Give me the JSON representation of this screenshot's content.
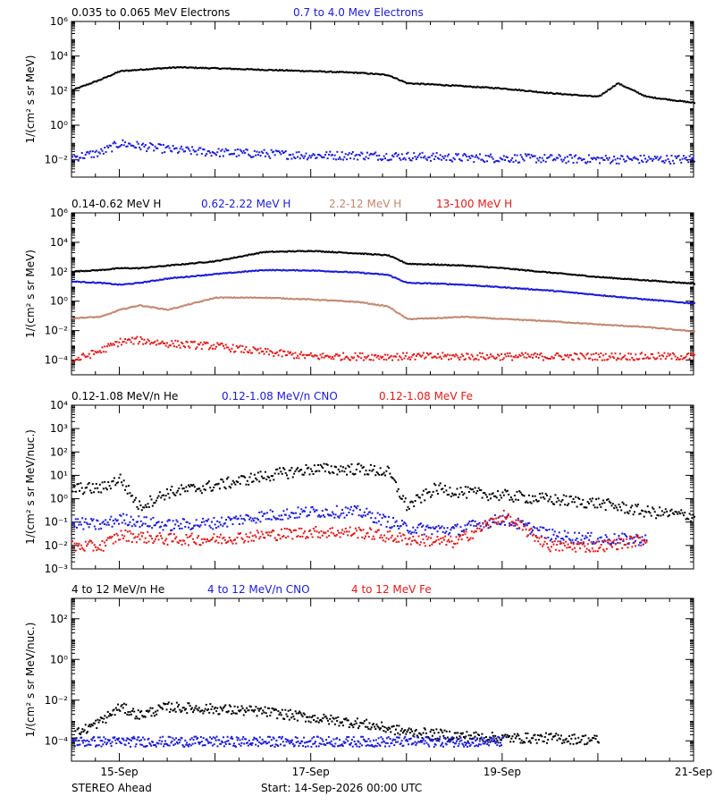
{
  "footer": {
    "left": "STEREO Ahead",
    "center": "Start: 14-Sep-2026 00:00 UTC"
  },
  "x_ticks": [
    "15-Sep",
    "17-Sep",
    "19-Sep",
    "21-Sep"
  ],
  "colors": {
    "black": "#000000",
    "blue": "#1a1ad8",
    "tan": "#c08870",
    "red": "#e01a1a"
  },
  "chart_data": [
    {
      "type": "scatter",
      "ylabel": "1/(cm² s sr MeV)",
      "ylabel_plain": "1/(cm^2 s sr MeV)",
      "log_y": true,
      "ylim": [
        0.001,
        1000000
      ],
      "y_ticks": [
        "10⁻²",
        "10⁰",
        "10²",
        "10⁴",
        "10⁶"
      ],
      "legend": [
        "0.035 to 0.065 MeV Electrons",
        "0.7 to 4.0 Mev Electrons"
      ],
      "series": [
        {
          "name": "0.035 to 0.065 MeV Electrons",
          "color": "black",
          "x": [
            14.5,
            14.8,
            15.0,
            15.3,
            15.6,
            16.0,
            16.5,
            17.0,
            17.5,
            17.8,
            18.0,
            18.3,
            18.6,
            19.0,
            19.5,
            20.0,
            20.2,
            20.5,
            21.0
          ],
          "y": [
            120,
            500,
            1500,
            2000,
            2500,
            2200,
            1800,
            1500,
            1200,
            900,
            300,
            250,
            200,
            150,
            80,
            50,
            300,
            50,
            22
          ]
        },
        {
          "name": "0.7 to 4.0 Mev Electrons",
          "color": "blue",
          "x": [
            14.5,
            14.8,
            15.0,
            15.3,
            15.6,
            16.0,
            16.5,
            17.0,
            17.5,
            18.0,
            18.5,
            19.0,
            19.5,
            20.0,
            20.5,
            21.0
          ],
          "y": [
            0.015,
            0.03,
            0.1,
            0.06,
            0.04,
            0.03,
            0.025,
            0.02,
            0.02,
            0.018,
            0.015,
            0.014,
            0.013,
            0.012,
            0.012,
            0.012
          ]
        }
      ]
    },
    {
      "type": "scatter",
      "ylabel": "1/(cm² s sr MeV)",
      "ylabel_plain": "1/(cm^2 s sr MeV)",
      "log_y": true,
      "ylim": [
        1e-05,
        1000000
      ],
      "y_ticks": [
        "10⁻⁴",
        "10⁻²",
        "10⁰",
        "10²",
        "10⁴",
        "10⁶"
      ],
      "legend": [
        "0.14-0.62 MeV H",
        "0.62-2.22 MeV H",
        "2.2-12 MeV H",
        "13-100 MeV H"
      ],
      "series": [
        {
          "name": "0.14-0.62 MeV H",
          "color": "black",
          "x": [
            14.5,
            14.8,
            15.0,
            15.2,
            15.5,
            16.0,
            16.5,
            17.0,
            17.5,
            17.8,
            18.0,
            18.3,
            18.6,
            19.0,
            19.5,
            20.0,
            20.5,
            21.0
          ],
          "y": [
            120,
            150,
            200,
            200,
            300,
            600,
            2500,
            3000,
            2000,
            1500,
            400,
            350,
            300,
            200,
            100,
            50,
            30,
            18
          ]
        },
        {
          "name": "0.62-2.22 MeV H",
          "color": "blue",
          "x": [
            14.5,
            14.8,
            15.0,
            15.2,
            15.5,
            16.0,
            16.5,
            17.0,
            17.5,
            17.8,
            18.0,
            18.3,
            18.6,
            19.0,
            19.5,
            20.0,
            20.5,
            21.0
          ],
          "y": [
            25,
            20,
            15,
            20,
            40,
            80,
            150,
            140,
            100,
            70,
            20,
            18,
            15,
            10,
            6,
            3,
            1.5,
            0.8
          ]
        },
        {
          "name": "2.2-12 MeV H",
          "color": "tan",
          "x": [
            14.5,
            14.8,
            15.0,
            15.2,
            15.5,
            16.0,
            16.5,
            17.0,
            17.5,
            17.8,
            18.0,
            18.3,
            18.6,
            19.0,
            19.5,
            20.0,
            20.5,
            21.0
          ],
          "y": [
            0.08,
            0.1,
            0.3,
            0.6,
            0.3,
            2,
            2,
            1.5,
            1,
            0.5,
            0.07,
            0.08,
            0.1,
            0.07,
            0.05,
            0.03,
            0.02,
            0.01
          ]
        },
        {
          "name": "13-100 MeV H",
          "color": "red",
          "x": [
            14.5,
            14.8,
            15.0,
            15.2,
            15.5,
            16.0,
            16.5,
            17.0,
            17.5,
            18.0,
            18.5,
            19.0,
            19.5,
            20.0,
            20.5,
            21.0
          ],
          "y": [
            0.0001,
            0.0005,
            0.002,
            0.0025,
            0.0015,
            0.001,
            0.0004,
            0.0002,
            0.0002,
            0.0002,
            0.0002,
            0.0002,
            0.0002,
            0.0002,
            0.0002,
            0.0002
          ]
        }
      ]
    },
    {
      "type": "scatter",
      "ylabel": "1/(cm² s sr MeV/nuc.)",
      "ylabel_plain": "1/(cm^2 s sr MeV/nuc.)",
      "log_y": true,
      "ylim": [
        0.001,
        10000
      ],
      "y_ticks": [
        "10⁻³",
        "10⁻²",
        "10⁻¹",
        "10⁰",
        "10¹",
        "10²",
        "10³",
        "10⁴"
      ],
      "legend": [
        "0.12-1.08 MeV/n He",
        "0.12-1.08 MeV/n CNO",
        "0.12-1.08 MeV Fe"
      ],
      "series": [
        {
          "name": "0.12-1.08 MeV/n He",
          "color": "black",
          "x": [
            14.5,
            14.8,
            15.0,
            15.2,
            15.5,
            16.0,
            16.5,
            17.0,
            17.5,
            17.8,
            18.0,
            18.3,
            18.6,
            19.0,
            19.5,
            20.0,
            20.5,
            21.0
          ],
          "y": [
            3,
            3,
            8,
            0.5,
            2,
            4,
            10,
            20,
            20,
            15,
            0.5,
            3,
            2,
            1.5,
            1,
            0.7,
            0.3,
            0.2
          ]
        },
        {
          "name": "0.12-1.08 MeV/n CNO",
          "color": "blue",
          "x": [
            14.5,
            14.8,
            15.0,
            15.5,
            16.0,
            16.5,
            17.0,
            17.5,
            18.0,
            18.5,
            19.0,
            19.5,
            20.0,
            20.5
          ],
          "y": [
            0.1,
            0.08,
            0.15,
            0.08,
            0.1,
            0.2,
            0.3,
            0.3,
            0.06,
            0.05,
            0.15,
            0.03,
            0.02,
            0.02
          ]
        },
        {
          "name": "0.12-1.08 MeV Fe",
          "color": "red",
          "x": [
            14.5,
            14.8,
            15.0,
            15.5,
            16.0,
            16.5,
            17.0,
            17.5,
            18.0,
            18.5,
            19.0,
            19.5,
            20.0,
            20.5
          ],
          "y": [
            0.01,
            0.01,
            0.03,
            0.02,
            0.02,
            0.03,
            0.04,
            0.04,
            0.02,
            0.015,
            0.2,
            0.01,
            0.01,
            0.02
          ]
        }
      ]
    },
    {
      "type": "scatter",
      "ylabel": "1/(cm² s sr MeV/nuc.)",
      "ylabel_plain": "1/(cm^2 s sr MeV/nuc.)",
      "log_y": true,
      "ylim": [
        1e-05,
        1000
      ],
      "y_ticks": [
        "10⁻⁴",
        "10⁻²",
        "10⁰",
        "10²"
      ],
      "legend": [
        "4 to 12 MeV/n He",
        "4 to 12 MeV/n CNO",
        "4 to 12 MeV Fe"
      ],
      "series": [
        {
          "name": "4 to 12 MeV/n He",
          "color": "black",
          "x": [
            14.5,
            14.8,
            15.0,
            15.2,
            15.5,
            16.0,
            16.5,
            17.0,
            17.5,
            18.0,
            18.5,
            19.0,
            19.5,
            20.0
          ],
          "y": [
            0.0002,
            0.001,
            0.005,
            0.002,
            0.005,
            0.004,
            0.003,
            0.0015,
            0.0008,
            0.0003,
            0.0002,
            0.00015,
            0.00015,
            0.00012
          ]
        },
        {
          "name": "4 to 12 MeV/n CNO",
          "color": "blue",
          "x": [
            14.5,
            15.0,
            15.5,
            16.0,
            16.5,
            17.0,
            17.5,
            18.0,
            18.5,
            19.0
          ],
          "y": [
            0.0001,
            0.0001,
            0.0001,
            0.0001,
            0.0001,
            0.0001,
            0.0001,
            0.0001,
            0.0001,
            0.0001
          ]
        },
        {
          "name": "4 to 12 MeV Fe",
          "color": "red",
          "x": [],
          "y": []
        }
      ]
    }
  ]
}
